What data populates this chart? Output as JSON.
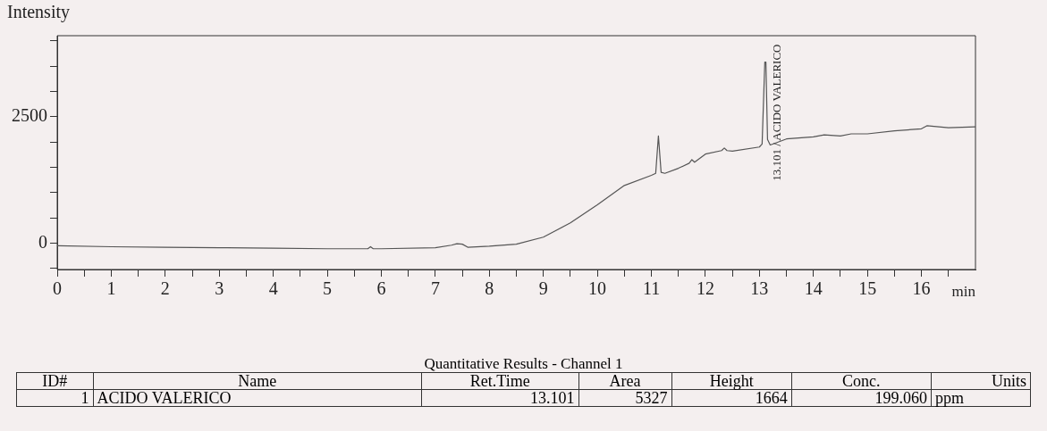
{
  "chart_data": {
    "type": "line",
    "ylabel": "Intensity",
    "xlabel": "min",
    "x": [
      0,
      1,
      2,
      3,
      4,
      5,
      5.75,
      5.8,
      5.85,
      6,
      7,
      7.3,
      7.4,
      7.5,
      7.6,
      8,
      8.5,
      9,
      9.5,
      10,
      10.5,
      11,
      11.08,
      11.13,
      11.18,
      11.25,
      11.5,
      11.7,
      11.75,
      11.8,
      12,
      12.3,
      12.35,
      12.4,
      12.5,
      13,
      13.05,
      13.1,
      13.12,
      13.15,
      13.2,
      13.5,
      14,
      14.2,
      14.5,
      14.7,
      15,
      15.5,
      16,
      16.1,
      16.5,
      17
    ],
    "series": [
      {
        "color": "#555555",
        "values": [
          -50,
          -70,
          -80,
          -90,
          -100,
          -110,
          -110,
          -70,
          -110,
          -110,
          -90,
          -40,
          -10,
          -20,
          -80,
          -60,
          -20,
          120,
          400,
          760,
          1140,
          1340,
          1380,
          2120,
          1400,
          1380,
          1480,
          1580,
          1650,
          1600,
          1760,
          1830,
          1880,
          1830,
          1820,
          1900,
          1960,
          3580,
          3580,
          2050,
          1940,
          2060,
          2100,
          2140,
          2120,
          2160,
          2160,
          2220,
          2260,
          2320,
          2280,
          2300
        ]
      }
    ],
    "xlim": [
      0,
      17
    ],
    "ylim": [
      -520,
      4100
    ],
    "xticks": [
      0,
      {
        "value": 0.5,
        "label": null
      },
      1,
      {
        "value": 1.5,
        "label": null
      },
      2,
      {
        "value": 2.5,
        "label": null
      },
      3,
      {
        "value": 3.5,
        "label": null
      },
      4,
      {
        "value": 4.5,
        "label": null
      },
      5,
      {
        "value": 5.5,
        "label": null
      },
      6,
      {
        "value": 6.5,
        "label": null
      },
      7,
      {
        "value": 7.5,
        "label": null
      },
      8,
      {
        "value": 8.5,
        "label": null
      },
      9,
      {
        "value": 9.5,
        "label": null
      },
      10,
      {
        "value": 10.5,
        "label": null
      },
      11,
      {
        "value": 11.5,
        "label": null
      },
      12,
      {
        "value": 12.5,
        "label": null
      },
      13,
      {
        "value": 13.5,
        "label": null
      },
      14,
      {
        "value": 14.5,
        "label": null
      },
      15,
      {
        "value": 15.5,
        "label": null
      },
      16,
      {
        "value": 16.5,
        "label": null
      }
    ],
    "yticks": [
      {
        "value": -500,
        "label": null
      },
      0,
      {
        "value": 500,
        "label": null
      },
      {
        "value": 1000,
        "label": null
      },
      {
        "value": 1500,
        "label": null
      },
      {
        "value": 2000,
        "label": null
      },
      2500,
      {
        "value": 3000,
        "label": null
      },
      {
        "value": 3500,
        "label": null
      },
      {
        "value": 4000,
        "label": null
      }
    ],
    "grid": false,
    "legend": false,
    "marker": "none",
    "line_style": "solid",
    "annotations": [
      {
        "text": "13.101 / ACIDO VALERICO",
        "x": 13.101,
        "y": 3580
      },
      "Quantitative Results - Channel 1",
      "ID#",
      "Name",
      "Ret.Time",
      "Area",
      "Height",
      "Conc.",
      "Units",
      "1",
      "ACIDO VALERICO",
      "13.101",
      "5327",
      "1664",
      "199.060",
      "ppm"
    ]
  }
}
